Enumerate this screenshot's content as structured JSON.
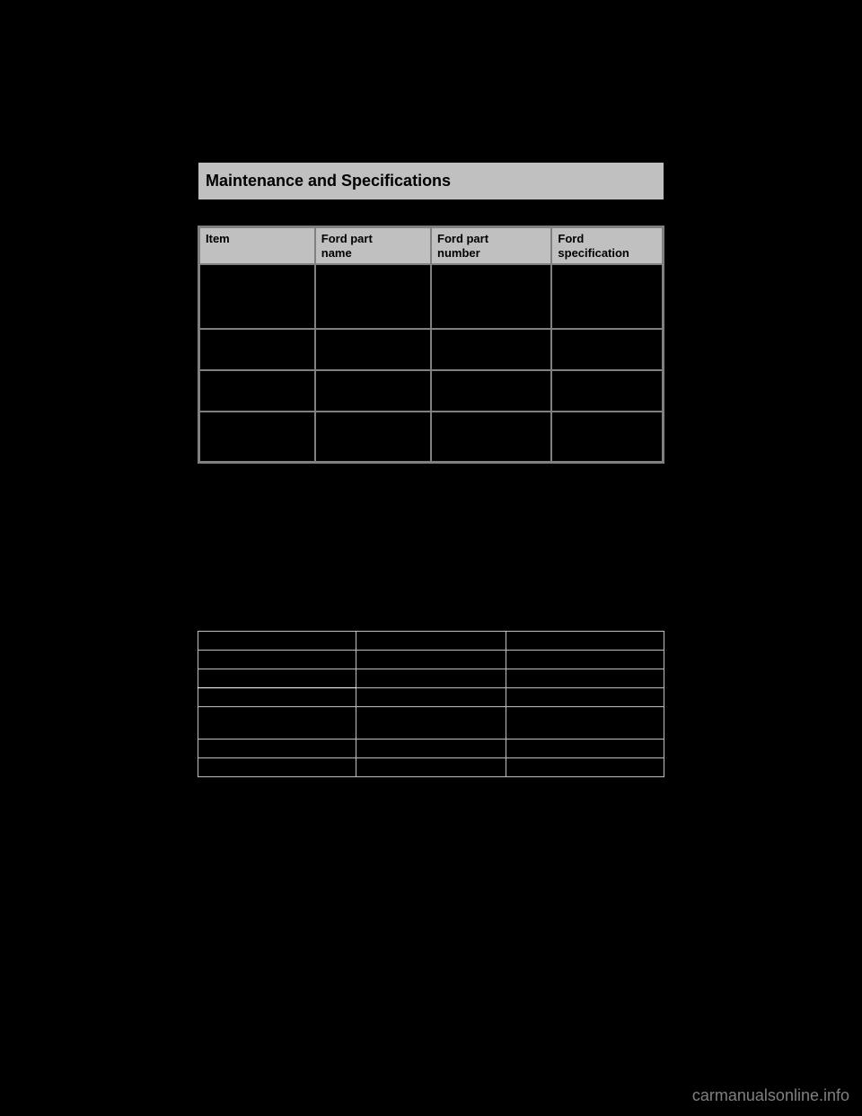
{
  "section_header": {
    "title": "Maintenance and Specifications"
  },
  "main_table": {
    "type": "table",
    "columns": [
      {
        "label": "Item"
      },
      {
        "label": "Ford part\nname"
      },
      {
        "label": "Ford part\nnumber"
      },
      {
        "label": "Ford\nspecification"
      }
    ],
    "rows": [
      [
        "",
        "",
        "",
        ""
      ],
      [
        "",
        "",
        "",
        ""
      ],
      [
        "",
        "",
        "",
        ""
      ],
      [
        "",
        "",
        "",
        ""
      ]
    ],
    "header_bg_color": "#c0c0c0",
    "cell_bg_color": "#000000",
    "border_color": "#808080",
    "header_fontsize": 13,
    "header_fontweight": "bold",
    "header_color": "#000000"
  },
  "secondary_table": {
    "type": "table",
    "columns": 3,
    "rows": 7,
    "cell_bg_color": "#000000",
    "border_color": "#c0c0c0",
    "row_height_default": 21,
    "row_height_tall": 36
  },
  "watermark": {
    "text": "carmanualsonline.info"
  },
  "page_bg_color": "#000000"
}
